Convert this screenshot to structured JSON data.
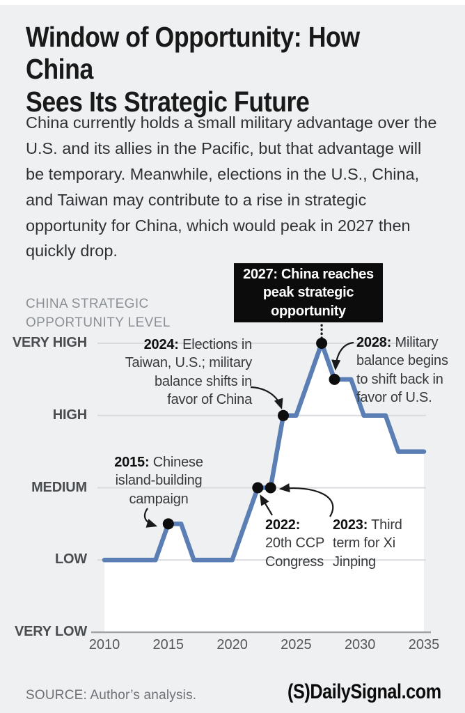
{
  "header": {
    "title_line1": "Window of Opportunity: How China",
    "title_line2": "Sees Its Strategic Future",
    "subtitle": "China currently holds a small military advantage over the U.S. and its allies in the Pacific, but that advantage will be temporary. Meanwhile, elections in the U.S., China, and Taiwan may contribute to a rise in strategic opportunity for China, which would peak in 2027 then quickly drop."
  },
  "chart": {
    "axis_title_line1": "CHINA STRATEGIC",
    "axis_title_line2": "OPPORTUNITY LEVEL",
    "callout": {
      "line1": "2027: China reaches",
      "line2": "peak strategic",
      "line3": "opportunity"
    }
  },
  "annotations": {
    "y2015": {
      "year": "2015:",
      "l1": " Chinese",
      "l2": "island-building",
      "l3": "campaign"
    },
    "y2022": {
      "year": "2022:",
      "l2": "20th CCP",
      "l3": "Congress"
    },
    "y2023": {
      "year": "2023:",
      "l1": " Third",
      "l2": "term for Xi",
      "l3": "Jinping"
    },
    "y2024": {
      "year": "2024:",
      "l1": " Elections in",
      "l2": "Taiwan, U.S.; military",
      "l3": "balance shifts in",
      "l4": "favor of China"
    },
    "y2028": {
      "year": "2028:",
      "l1": " Military",
      "l2": "balance begins",
      "l3": "to shift back in",
      "l4": "favor of U.S."
    }
  },
  "chart_data": {
    "type": "line",
    "title": "China Strategic Opportunity Level, 2010-2035",
    "ylabel": "CHINA STRATEGIC OPPORTUNITY LEVEL",
    "x_ticks": [
      2010,
      2015,
      2020,
      2025,
      2030,
      2035
    ],
    "xlim": [
      2010,
      2035
    ],
    "y_tick_labels": [
      "VERY LOW",
      "LOW",
      "MEDIUM",
      "HIGH",
      "VERY HIGH"
    ],
    "y_scale_note": "levels encoded 0 = VERY LOW through 4 = VERY HIGH",
    "ylim": [
      0,
      4
    ],
    "grid": true,
    "line_color": "#5b7fb4",
    "area_fill": "#ffffff",
    "marker_color": "#0d0d0d",
    "points": [
      [
        2010,
        1
      ],
      [
        2014,
        1
      ],
      [
        2015,
        1.5
      ],
      [
        2016,
        1.5
      ],
      [
        2017,
        1
      ],
      [
        2020,
        1
      ],
      [
        2022,
        2
      ],
      [
        2023,
        2
      ],
      [
        2024,
        3
      ],
      [
        2025,
        3
      ],
      [
        2027,
        4
      ],
      [
        2028,
        3.5
      ],
      [
        2029.3,
        3.5
      ],
      [
        2030.3,
        3
      ],
      [
        2032,
        3
      ],
      [
        2033,
        2.5
      ],
      [
        2035,
        2.5
      ]
    ],
    "markers": [
      [
        2015,
        1.5
      ],
      [
        2022,
        2
      ],
      [
        2023,
        2
      ],
      [
        2024,
        3
      ],
      [
        2027,
        4
      ],
      [
        2028,
        3.5
      ]
    ],
    "peak_year": 2027,
    "annotations": [
      {
        "year": 2015,
        "level": 1.5,
        "text": "2015: Chinese island-building campaign"
      },
      {
        "year": 2022,
        "level": 2,
        "text": "2022: 20th CCP Congress"
      },
      {
        "year": 2023,
        "level": 2,
        "text": "2023: Third term for Xi Jinping"
      },
      {
        "year": 2024,
        "level": 3,
        "text": "2024: Elections in Taiwan, U.S.; military balance shifts in favor of China"
      },
      {
        "year": 2027,
        "level": 4,
        "text": "2027: China reaches peak strategic opportunity"
      },
      {
        "year": 2028,
        "level": 3.5,
        "text": "2028: Military balance begins to shift back in favor of U.S."
      }
    ]
  },
  "footer": {
    "source": "SOURCE: Author’s analysis.",
    "logo": "(S)DailySignal.com"
  }
}
